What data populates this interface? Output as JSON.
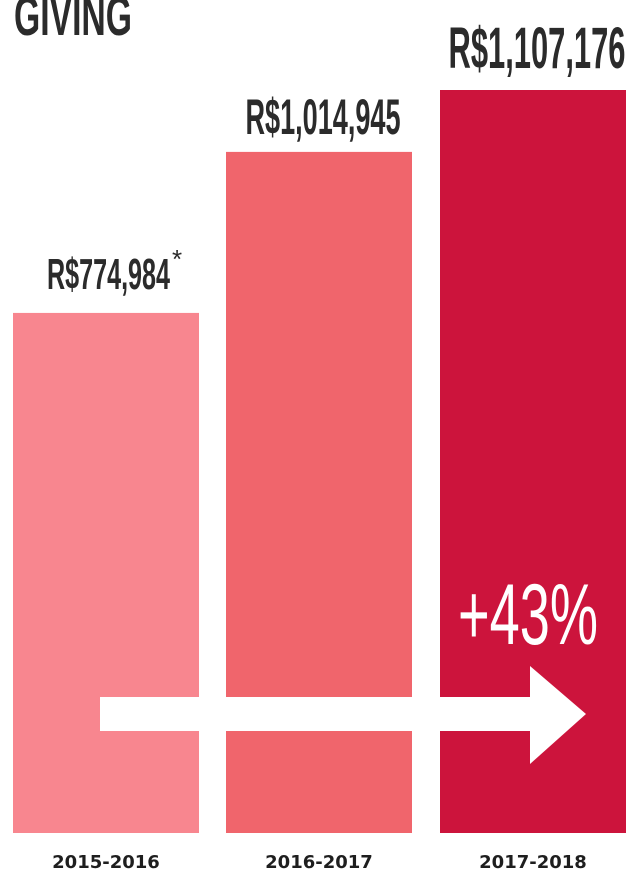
{
  "chart_data": {
    "type": "bar",
    "title": "GIVING",
    "categories": [
      "2015-2016",
      "2016-2017",
      "2017-2018"
    ],
    "values": [
      774984,
      1014945,
      1107176
    ],
    "value_labels": [
      "R$774,984",
      "R$1,014,945",
      "R$1,107,176"
    ],
    "footnote_marker": "*",
    "annotation": "+43%",
    "colors": [
      "#f8868f",
      "#f0656c",
      "#cc143c"
    ]
  }
}
